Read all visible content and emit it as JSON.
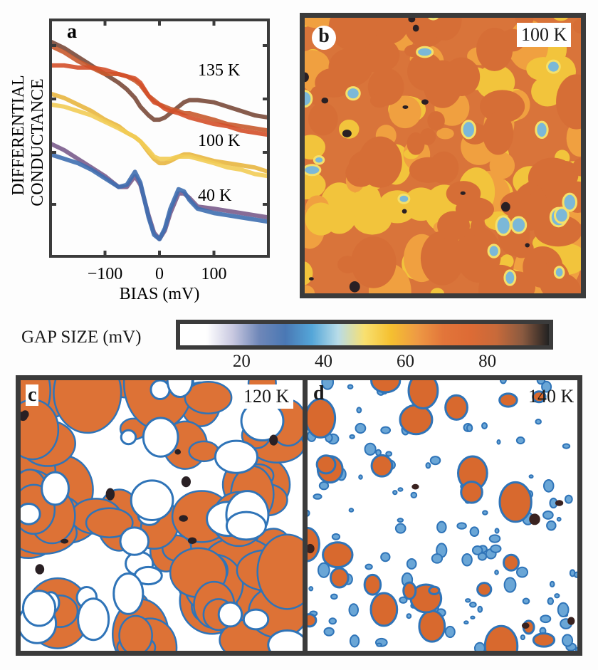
{
  "chart_data": [
    {
      "id": "a",
      "type": "line",
      "panel_label": "a",
      "xlabel": "BIAS (mV)",
      "ylabel": "DIFFERENTIAL CONDUCTANCE",
      "xlim": [
        -200,
        200
      ],
      "ylim": [
        0,
        1
      ],
      "x_ticks": [
        -100,
        0,
        100
      ],
      "x_tick_labels": [
        "−100",
        "0",
        "100"
      ],
      "y_tick_labels": [],
      "grid": false,
      "annotations": [
        "135 K",
        "100 K",
        "40 K"
      ],
      "x": [
        -200,
        -175,
        -150,
        -125,
        -100,
        -75,
        -60,
        -45,
        -35,
        -20,
        -10,
        0,
        10,
        20,
        35,
        45,
        55,
        70,
        100,
        125,
        150,
        175,
        200
      ],
      "series": [
        {
          "name": "135 K (dark brown)",
          "color": "#7a4a3a",
          "values": [
            0.94,
            0.91,
            0.87,
            0.83,
            0.79,
            0.75,
            0.72,
            0.68,
            0.64,
            0.6,
            0.58,
            0.58,
            0.59,
            0.61,
            0.64,
            0.66,
            0.67,
            0.67,
            0.66,
            0.64,
            0.62,
            0.6,
            0.59
          ]
        },
        {
          "name": "135 K (rust)",
          "color": "#c85a2e",
          "values": [
            0.92,
            0.89,
            0.85,
            0.82,
            0.79,
            0.79,
            0.78,
            0.76,
            0.74,
            0.69,
            0.67,
            0.65,
            0.64,
            0.63,
            0.62,
            0.61,
            0.61,
            0.6,
            0.58,
            0.56,
            0.55,
            0.54,
            0.53
          ]
        },
        {
          "name": "135 K (orange-red)",
          "color": "#d4502a",
          "values": [
            0.83,
            0.83,
            0.82,
            0.82,
            0.81,
            0.79,
            0.78,
            0.77,
            0.75,
            0.69,
            0.66,
            0.65,
            0.63,
            0.62,
            0.61,
            0.6,
            0.59,
            0.58,
            0.56,
            0.55,
            0.53,
            0.52,
            0.51
          ]
        },
        {
          "name": "100 K (gold)",
          "color": "#e8b640",
          "values": [
            0.7,
            0.68,
            0.65,
            0.62,
            0.58,
            0.55,
            0.52,
            0.5,
            0.48,
            0.43,
            0.4,
            0.38,
            0.38,
            0.39,
            0.41,
            0.42,
            0.42,
            0.41,
            0.39,
            0.38,
            0.37,
            0.36,
            0.34
          ]
        },
        {
          "name": "100 K (yellow)",
          "color": "#f2cc55",
          "values": [
            0.65,
            0.64,
            0.62,
            0.6,
            0.57,
            0.54,
            0.52,
            0.5,
            0.48,
            0.44,
            0.41,
            0.4,
            0.4,
            0.4,
            0.41,
            0.41,
            0.41,
            0.4,
            0.38,
            0.36,
            0.35,
            0.33,
            0.32
          ]
        },
        {
          "name": "40 K (purple)",
          "color": "#7a5c8c",
          "values": [
            0.47,
            0.44,
            0.4,
            0.36,
            0.32,
            0.27,
            0.27,
            0.32,
            0.28,
            0.14,
            0.06,
            0.03,
            0.07,
            0.15,
            0.24,
            0.24,
            0.22,
            0.18,
            0.17,
            0.16,
            0.15,
            0.14,
            0.13
          ]
        },
        {
          "name": "40 K (blue)",
          "color": "#3f6fb0",
          "values": [
            0.42,
            0.4,
            0.38,
            0.35,
            0.31,
            0.27,
            0.28,
            0.34,
            0.29,
            0.13,
            0.05,
            0.03,
            0.08,
            0.17,
            0.26,
            0.25,
            0.21,
            0.17,
            0.15,
            0.14,
            0.13,
            0.12,
            0.11
          ]
        }
      ]
    },
    {
      "id": "b",
      "type": "heatmap",
      "panel_label": "b",
      "temperature_label": "100 K",
      "description": "Gap map, mostly 55-75 mV (orange) with yellow patches, a few blue (~35-45 mV) spots and dark (~90 mV) spots"
    },
    {
      "id": "colorbar",
      "type": "heatmap",
      "title": "GAP SIZE (mV)",
      "range": [
        5,
        95
      ],
      "ticks": [
        20,
        40,
        60,
        80
      ],
      "colors": [
        "#ffffff",
        "#ffffff",
        "#c8c8e0",
        "#6f87b8",
        "#4a78b4",
        "#54a6d8",
        "#b8dce8",
        "#f8e070",
        "#f5c030",
        "#ee9a44",
        "#e2753a",
        "#dd6b35",
        "#c86a3a",
        "#8a5a40",
        "#222222"
      ]
    },
    {
      "id": "c",
      "type": "heatmap",
      "panel_label": "c",
      "temperature_label": "120 K",
      "description": "Gap map with large orange gapped regions separated by white (gapless) regions outlined in blue"
    },
    {
      "id": "d",
      "type": "heatmap",
      "panel_label": "d",
      "temperature_label": "140 K",
      "description": "Gap map mostly white (gapless) with small isolated orange/dark patches outlined in blue"
    }
  ]
}
